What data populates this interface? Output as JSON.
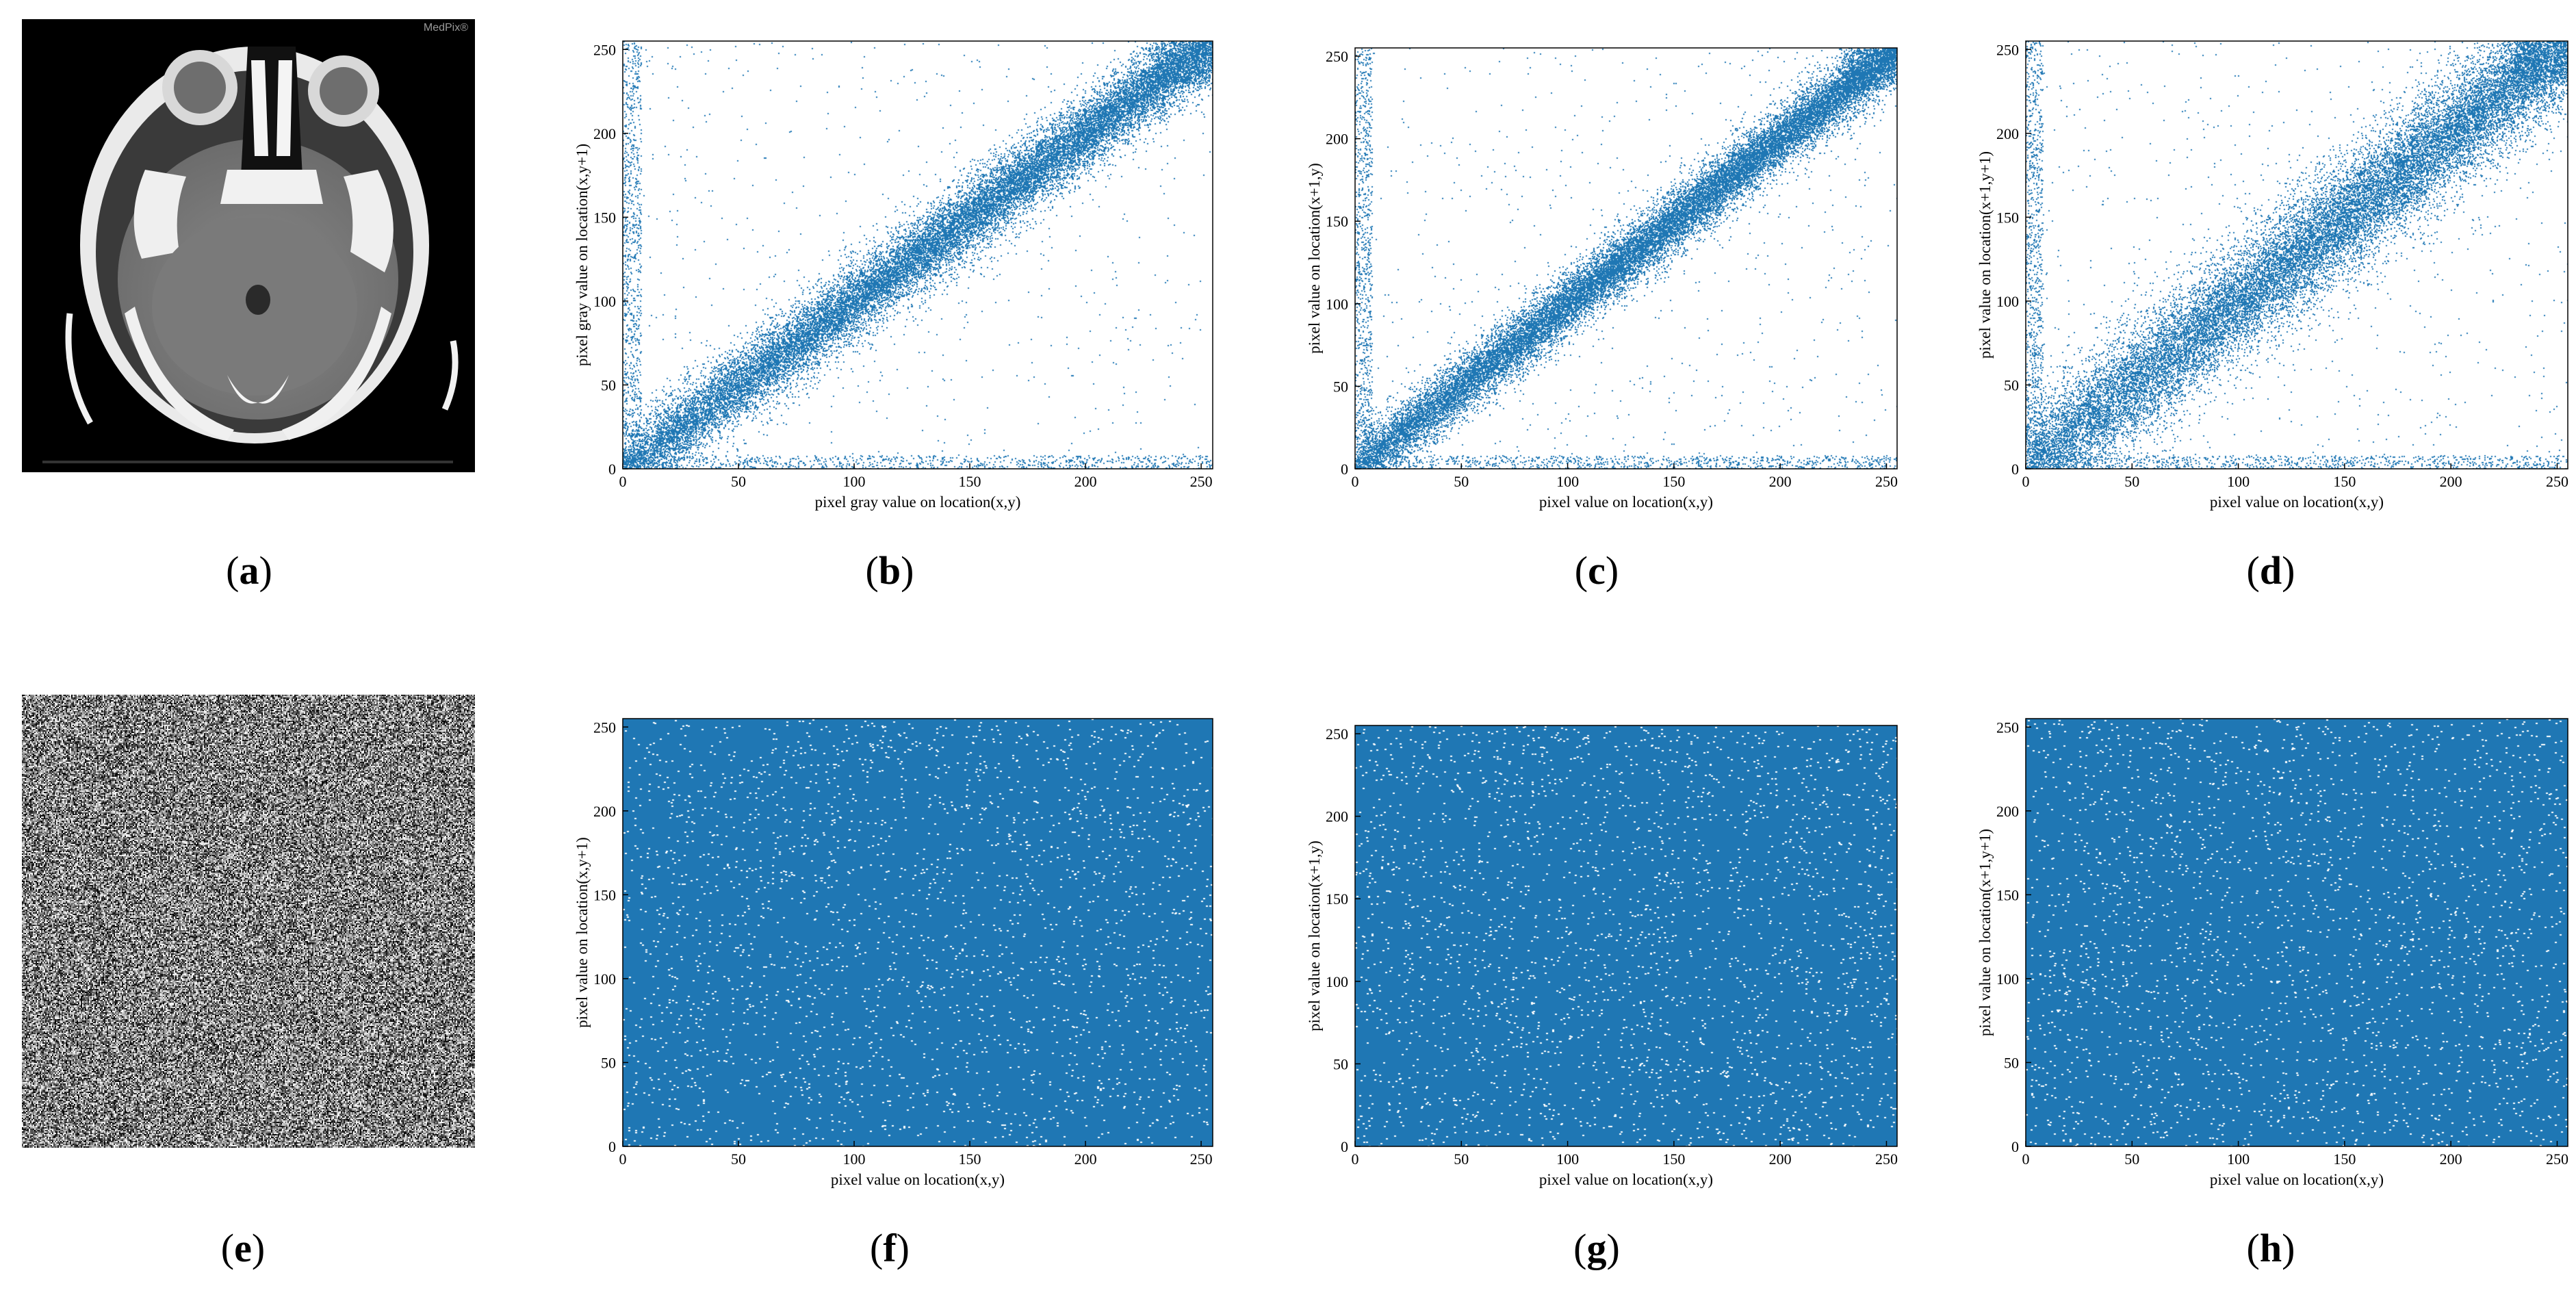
{
  "labels": [
    "a",
    "b",
    "c",
    "d",
    "e",
    "f",
    "g",
    "h"
  ],
  "image_a": {
    "watermark": "MedPix®"
  },
  "chart_data": [
    {
      "id": "b",
      "type": "scatter",
      "pattern": "diagonal",
      "xlabel": "pixel gray value on location(x,y)",
      "ylabel": "pixel gray value on location(x,y+1)",
      "xlim": [
        0,
        255
      ],
      "ylim": [
        0,
        255
      ],
      "xticks": [
        0,
        50,
        100,
        150,
        200,
        250
      ],
      "yticks": [
        0,
        50,
        100,
        150,
        200,
        250
      ],
      "color": "#1f77b4",
      "spread": 11,
      "density": 22000,
      "outliers": 650
    },
    {
      "id": "c",
      "type": "scatter",
      "pattern": "diagonal",
      "xlabel": "pixel value on location(x,y)",
      "ylabel": "pixel value on location(x+1,y)",
      "xlim": [
        0,
        255
      ],
      "ylim": [
        0,
        255
      ],
      "xticks": [
        0,
        50,
        100,
        150,
        200,
        250
      ],
      "yticks": [
        0,
        50,
        100,
        150,
        200,
        250
      ],
      "color": "#1f77b4",
      "spread": 9,
      "density": 22000,
      "outliers": 650
    },
    {
      "id": "d",
      "type": "scatter",
      "pattern": "diagonal",
      "xlabel": "pixel value on location(x,y)",
      "ylabel": "pixel value on location(x+1,y+1)",
      "xlim": [
        0,
        255
      ],
      "ylim": [
        0,
        255
      ],
      "xticks": [
        0,
        50,
        100,
        150,
        200,
        250
      ],
      "yticks": [
        0,
        50,
        100,
        150,
        200,
        250
      ],
      "color": "#1f77b4",
      "spread": 17,
      "density": 22000,
      "outliers": 700
    },
    {
      "id": "f",
      "type": "scatter",
      "pattern": "uniform",
      "xlabel": "pixel value on location(x,y)",
      "ylabel": "pixel value on location(x,y+1)",
      "xlim": [
        0,
        255
      ],
      "ylim": [
        0,
        255
      ],
      "xticks": [
        0,
        50,
        100,
        150,
        200,
        250
      ],
      "yticks": [
        0,
        50,
        100,
        150,
        200,
        250
      ],
      "color": "#1f77b4",
      "density": 2500
    },
    {
      "id": "g",
      "type": "scatter",
      "pattern": "uniform",
      "xlabel": "pixel value on location(x,y)",
      "ylabel": "pixel value on location(x+1,y)",
      "xlim": [
        0,
        255
      ],
      "ylim": [
        0,
        255
      ],
      "xticks": [
        0,
        50,
        100,
        150,
        200,
        250
      ],
      "yticks": [
        0,
        50,
        100,
        150,
        200,
        250
      ],
      "color": "#1f77b4",
      "density": 2500
    },
    {
      "id": "h",
      "type": "scatter",
      "pattern": "uniform",
      "xlabel": "pixel value on location(x,y)",
      "ylabel": "pixel value on location(x+1,y+1)",
      "xlim": [
        0,
        255
      ],
      "ylim": [
        0,
        255
      ],
      "xticks": [
        0,
        50,
        100,
        150,
        200,
        250
      ],
      "yticks": [
        0,
        50,
        100,
        150,
        200,
        250
      ],
      "color": "#1f77b4",
      "density": 2500
    }
  ]
}
